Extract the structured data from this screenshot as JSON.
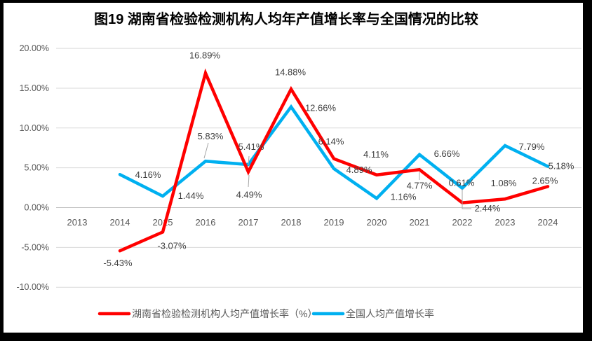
{
  "chart_data": {
    "type": "line",
    "title": "图19 湖南省检验检测机构人均年产值增长率与全国情况的比较",
    "categories": [
      "2013",
      "2014",
      "2015",
      "2016",
      "2017",
      "2018",
      "2019",
      "2020",
      "2021",
      "2022",
      "2023",
      "2024"
    ],
    "y_axis": {
      "ticks": [
        "20.00%",
        "15.00%",
        "10.00%",
        "5.00%",
        "0.00%",
        "-5.00%",
        "-10.00%"
      ],
      "max": 20,
      "min": -10,
      "step": 5
    },
    "grid": true,
    "legend_position": "bottom",
    "colors": {
      "gridline": "#D9D9D9",
      "zero_line": "#BFBFBF",
      "leader": "#A6A6A6"
    },
    "series": [
      {
        "name": "湖南省检验检测机构人均产值增长率（%）",
        "color": "#FF0000",
        "values": [
          null,
          -5.43,
          -3.07,
          16.89,
          4.49,
          14.88,
          6.14,
          4.11,
          4.77,
          0.61,
          1.08,
          2.65
        ],
        "labels": [
          null,
          "-5.43%",
          "-3.07%",
          "16.89%",
          "4.49%",
          "14.88%",
          "6.14%",
          "4.11%",
          "4.77%",
          "0.61%",
          "1.08%",
          "2.65%"
        ],
        "label_offsets": [
          null,
          [
            -3,
            18
          ],
          [
            13,
            20
          ],
          [
            -1,
            -25
          ],
          [
            1,
            33
          ],
          [
            -1,
            -24
          ],
          [
            -4,
            -24
          ],
          [
            -1,
            -29
          ],
          [
            0,
            23
          ],
          [
            -1,
            -28
          ],
          [
            -2,
            -22
          ],
          [
            -4,
            -8
          ]
        ]
      },
      {
        "name": "全国人均产值增长率",
        "color": "#00B0F0",
        "values": [
          null,
          4.16,
          1.44,
          5.83,
          5.41,
          12.66,
          4.89,
          1.16,
          6.66,
          2.44,
          7.79,
          5.18
        ],
        "labels": [
          null,
          "4.16%",
          "1.44%",
          "5.83%",
          "5.41%",
          "12.66%",
          "4.89%",
          "1.16%",
          "6.66%",
          "2.44%",
          "7.79%",
          "5.18%"
        ],
        "label_offsets": [
          null,
          [
            40,
            1
          ],
          [
            40,
            0
          ],
          [
            7,
            -35
          ],
          [
            4,
            -25
          ],
          [
            42,
            2
          ],
          [
            36,
            2
          ],
          [
            38,
            -2
          ],
          [
            39,
            -1
          ],
          [
            36,
            29
          ],
          [
            38,
            2
          ],
          [
            19,
            0
          ]
        ]
      }
    ],
    "leader_lines": [
      [
        [
          297,
          204
        ],
        [
          291,
          226
        ]
      ],
      [
        [
          355,
          223
        ],
        [
          354,
          236
        ]
      ],
      [
        [
          355,
          250
        ],
        [
          354,
          267
        ]
      ],
      [
        [
          598,
          246
        ],
        [
          598,
          257
        ]
      ],
      [
        [
          659,
          270
        ],
        [
          659,
          298
        ],
        [
          672,
          298
        ]
      ]
    ]
  }
}
